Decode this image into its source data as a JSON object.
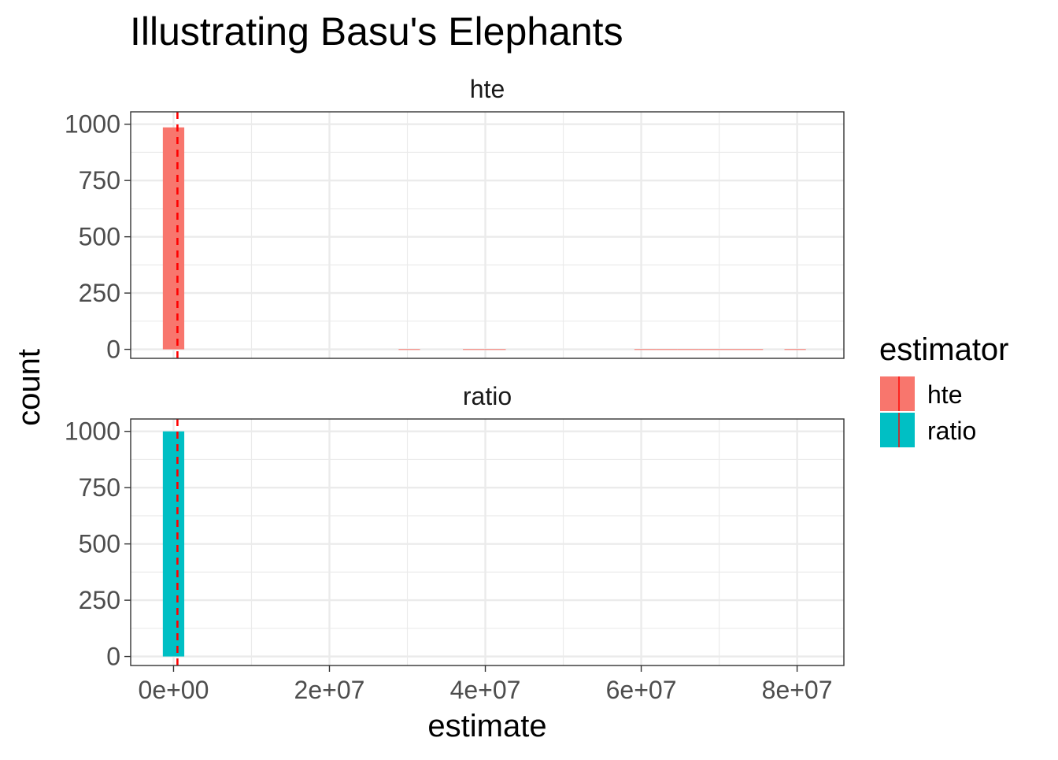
{
  "chart_data": {
    "type": "bar",
    "title": "Illustrating Basu's Elephants",
    "xlabel": "estimate",
    "ylabel": "count",
    "xlim": [
      -5500000,
      86000000
    ],
    "ylim": [
      -40,
      1055
    ],
    "x_ticks": [
      0,
      20000000,
      40000000,
      60000000,
      80000000
    ],
    "x_tick_labels": [
      "0e+00",
      "2e+07",
      "4e+07",
      "6e+07",
      "8e+07"
    ],
    "y_ticks": [
      0,
      250,
      500,
      750,
      1000
    ],
    "y_tick_labels": [
      "0",
      "250",
      "500",
      "750",
      "1000"
    ],
    "grid": true,
    "legend": {
      "title": "estimator",
      "placement": "right",
      "items": [
        {
          "label": "hte",
          "color": "#F8766D"
        },
        {
          "label": "ratio",
          "color": "#00BFC4"
        }
      ]
    },
    "reference_line": {
      "x": 500000,
      "color": "#FF0000",
      "style": "dashed"
    },
    "bin_width": 2750000,
    "panels": [
      {
        "facet": "hte",
        "color": "#F8766D",
        "bins": [
          {
            "x": 0,
            "count": 986
          },
          {
            "x": 2750000,
            "count": 0
          },
          {
            "x": 30250000,
            "count": 1
          },
          {
            "x": 38500000,
            "count": 1
          },
          {
            "x": 41250000,
            "count": 1
          },
          {
            "x": 60500000,
            "count": 1
          },
          {
            "x": 63250000,
            "count": 1
          },
          {
            "x": 66000000,
            "count": 1
          },
          {
            "x": 68750000,
            "count": 1
          },
          {
            "x": 71500000,
            "count": 1
          },
          {
            "x": 74250000,
            "count": 1
          },
          {
            "x": 79750000,
            "count": 1
          }
        ]
      },
      {
        "facet": "ratio",
        "color": "#00BFC4",
        "bins": [
          {
            "x": 0,
            "count": 1000
          }
        ]
      }
    ]
  }
}
